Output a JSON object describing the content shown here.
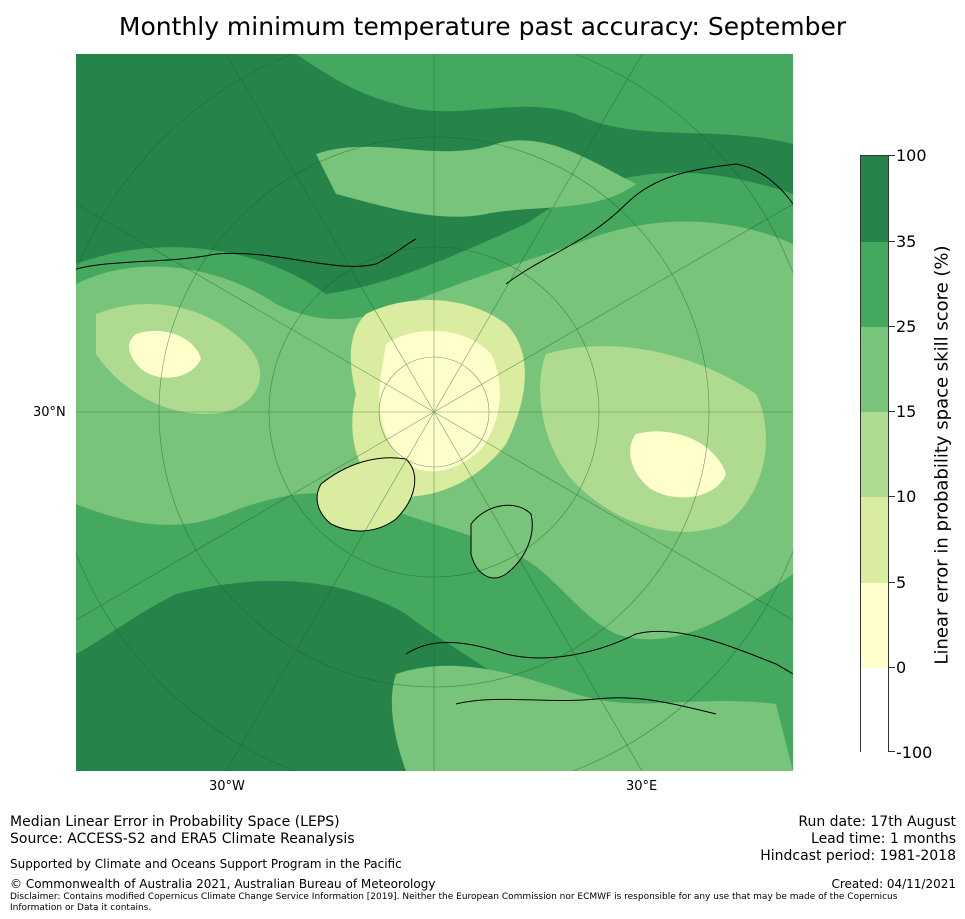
{
  "title": "Monthly minimum temperature past accuracy: September",
  "map": {
    "lat_label": "30°N",
    "lon_labels": [
      "30°W",
      "30°E"
    ],
    "colors": {
      "ocean_high": "#26844a",
      "mid": "#44a85f",
      "light": "#78c47a",
      "pale": "#aedb8f",
      "yellowish": "#daeca0",
      "cream": "#ffffcc",
      "white": "#ffffff"
    }
  },
  "colorbar": {
    "label": "Linear error in probability space skill score (%)",
    "ticks": [
      "100",
      "35",
      "25",
      "15",
      "10",
      "5",
      "0",
      "-100"
    ],
    "colors": [
      "#26844a",
      "#44a85f",
      "#78c47a",
      "#aedb8f",
      "#daeca0",
      "#ffffcc",
      "#ffffff"
    ]
  },
  "footer": {
    "left_line1": "Median Linear Error in Probability Space (LEPS)",
    "left_line2": "Source: ACCESS-S2 and ERA5 Climate Reanalysis",
    "supported": "Supported by Climate and Oceans Support Program in the Pacific",
    "copyright": "© Commonwealth of Australia 2021, Australian Bureau of Meteorology",
    "disclaimer": "Disclaimer: Contains modified Copernicus Climate Change Service Information [2019]. Neither the European Commission nor ECMWF is responsible for any use that may be made of the Copernicus Information or Data it contains.",
    "run_date": "Run date: 17th August",
    "lead_time": "Lead time: 1 months",
    "hindcast": "Hindcast period: 1981-2018",
    "created": "Created: 04/11/2021"
  }
}
